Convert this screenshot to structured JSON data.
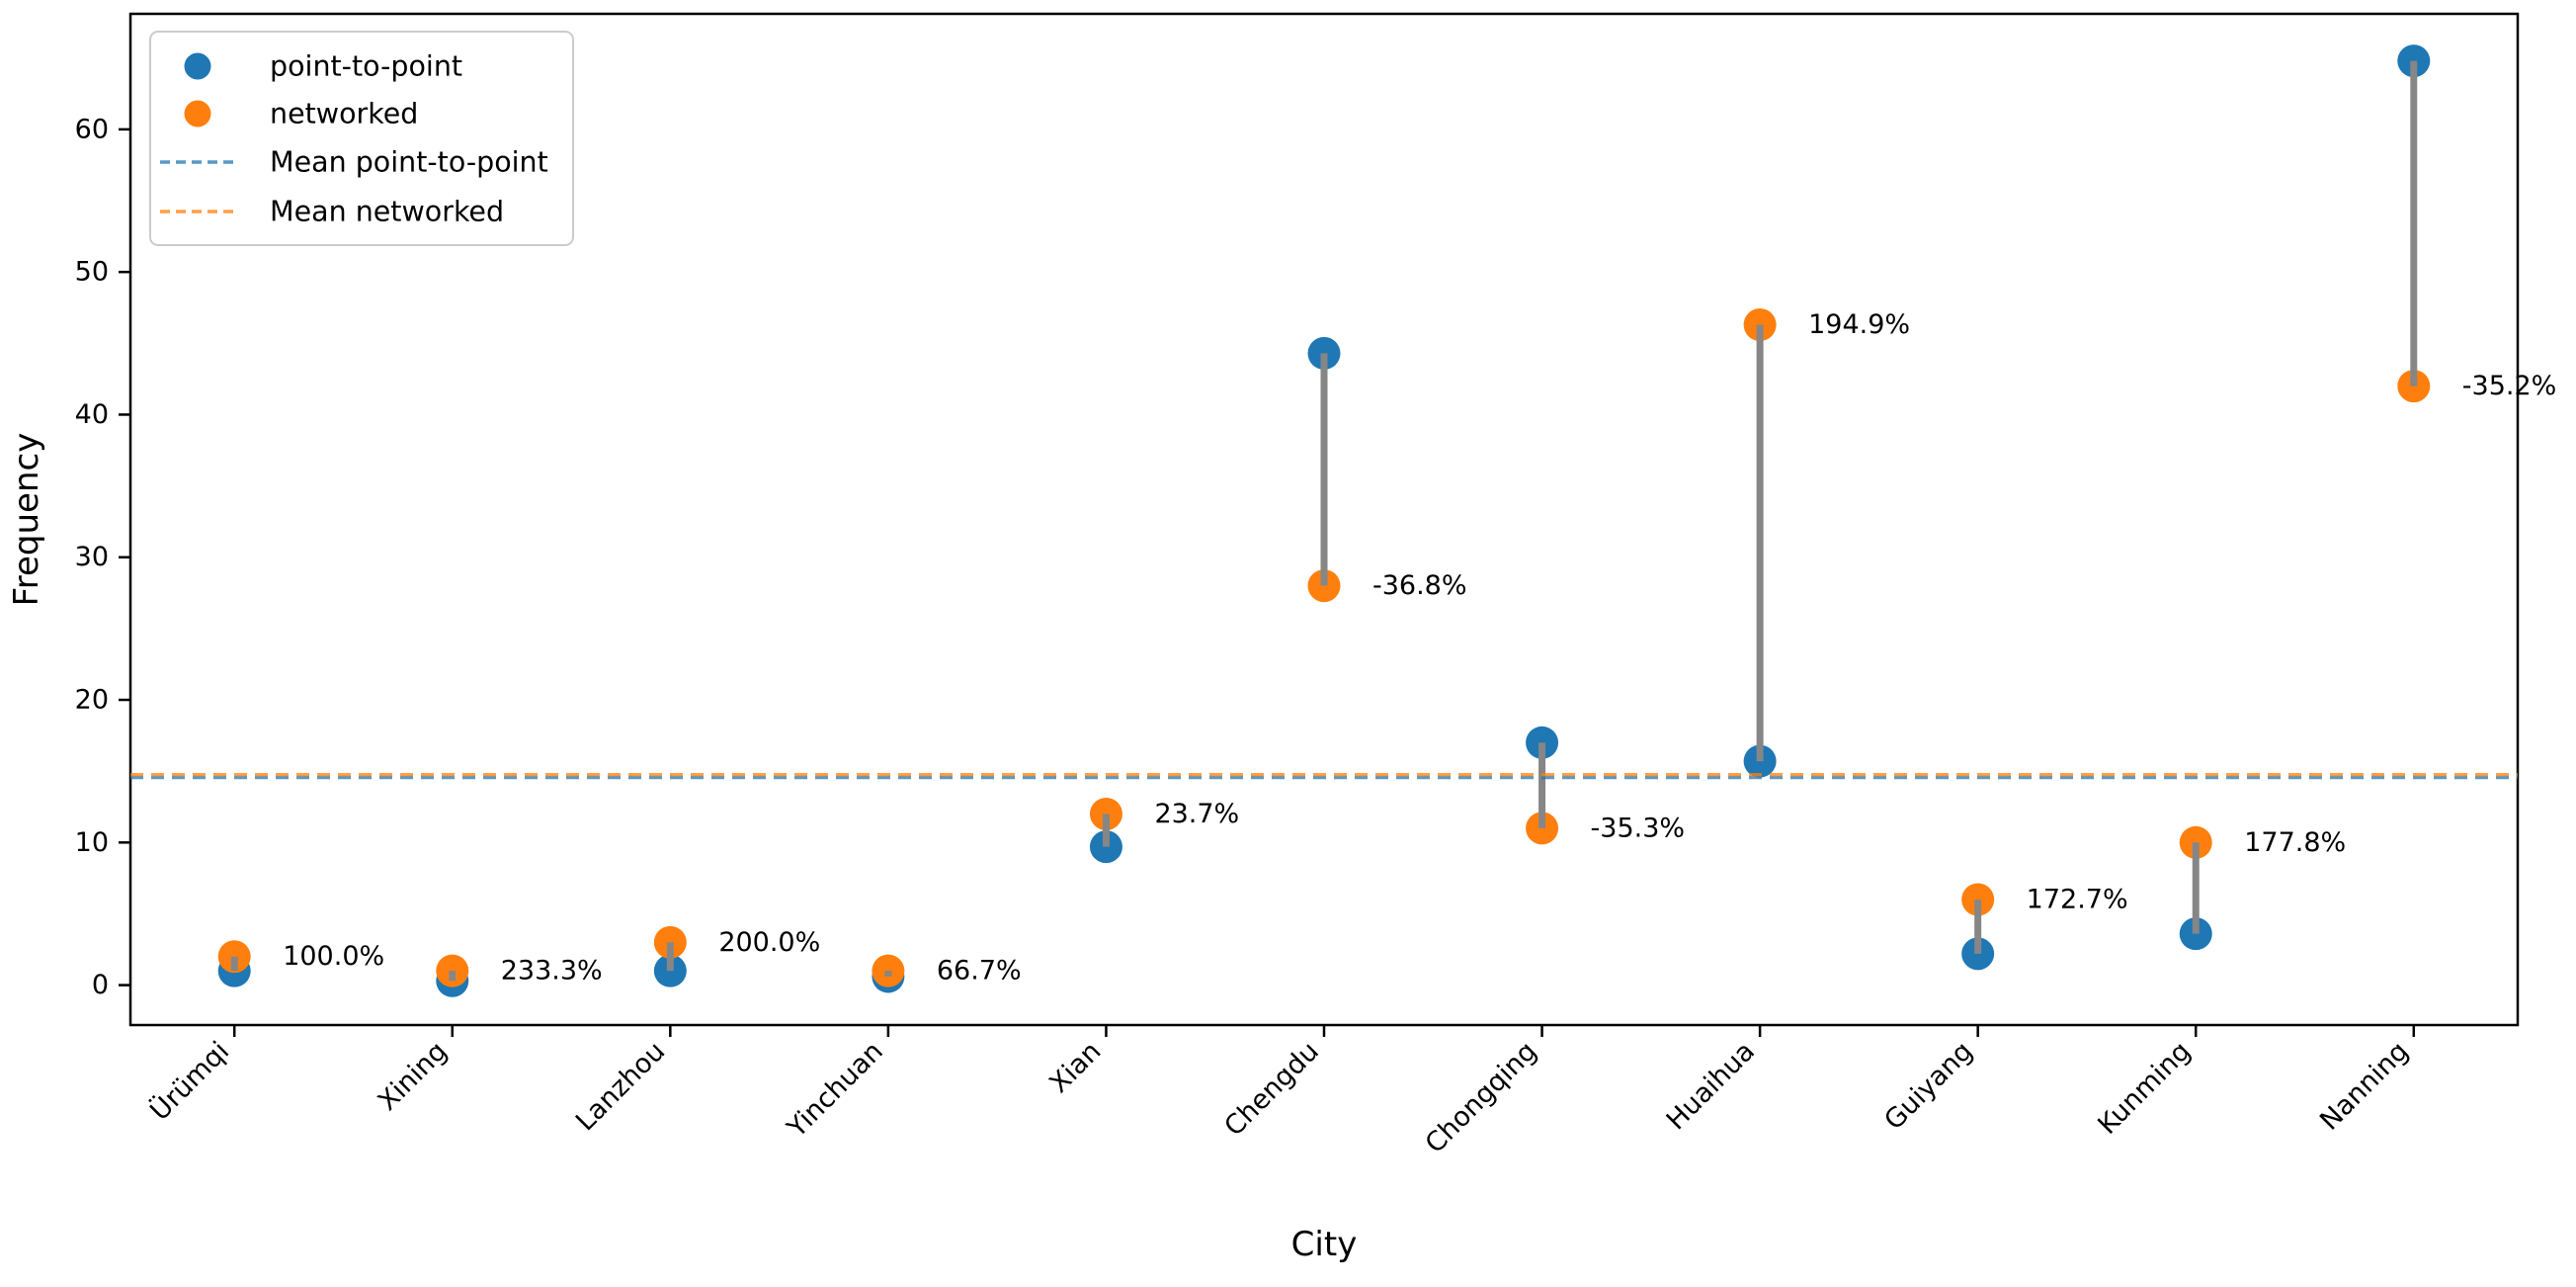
{
  "chart_data": {
    "type": "scatter",
    "title": "",
    "xlabel": "City",
    "ylabel": "Frequency",
    "categories": [
      "Ürümqi",
      "Xining",
      "Lanzhou",
      "Yinchuan",
      "Xian",
      "Chengdu",
      "Chongqing",
      "Huaihua",
      "Guiyang",
      "Kunming",
      "Nanning"
    ],
    "series": [
      {
        "name": "point-to-point",
        "color": "#1f77b4",
        "values": [
          1,
          0.3,
          1,
          0.6,
          9.7,
          44.3,
          17,
          15.7,
          2.2,
          3.6,
          64.8
        ]
      },
      {
        "name": "networked",
        "color": "#ff7f0e",
        "values": [
          2,
          1,
          3,
          1,
          12,
          28,
          11,
          46.3,
          6,
          10,
          42
        ]
      }
    ],
    "percent_change_labels": [
      "100.0%",
      "233.3%",
      "200.0%",
      "66.7%",
      "23.7%",
      "-36.8%",
      "-35.3%",
      "194.9%",
      "172.7%",
      "177.8%",
      "-35.2%"
    ],
    "mean_lines": [
      {
        "label": "Mean point-to-point",
        "value": 14.56,
        "color": "#1f77b4",
        "style": "dashed"
      },
      {
        "label": "Mean networked",
        "value": 14.75,
        "color": "#ff7f0e",
        "style": "dashed"
      }
    ],
    "legend": {
      "position": "upper left",
      "entries": [
        "point-to-point",
        "networked",
        "Mean point-to-point",
        "Mean networked"
      ]
    },
    "yticks": [
      0,
      10,
      20,
      30,
      40,
      50,
      60
    ],
    "ylim": [
      -2.8,
      68.1
    ],
    "grid": false,
    "connector_color": "#868686",
    "axis_color": "#000000",
    "background": "#ffffff"
  }
}
